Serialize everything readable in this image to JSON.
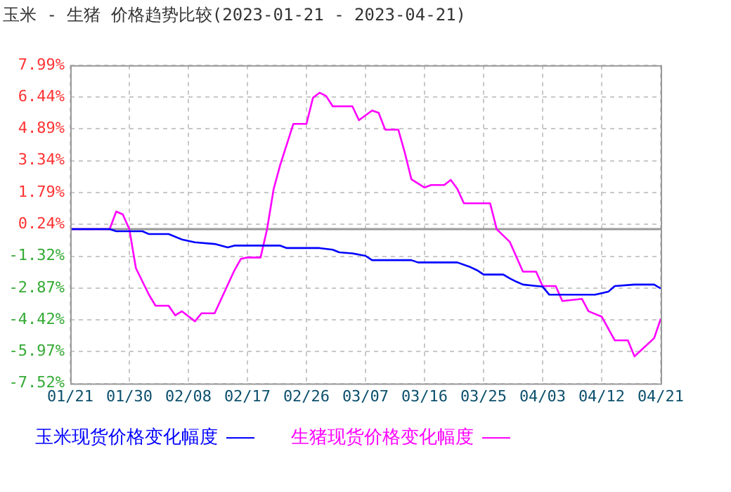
{
  "chart_data": {
    "type": "line",
    "title": "玉米 - 生猪 价格趋势比较(2023-01-21 - 2023-04-21)",
    "xlim": [
      "2023-01-21",
      "2023-04-21"
    ],
    "xticks": [
      {
        "value": "2023-01-21",
        "label": "01/21"
      },
      {
        "value": "2023-01-30",
        "label": "01/30"
      },
      {
        "value": "2023-02-08",
        "label": "02/08"
      },
      {
        "value": "2023-02-17",
        "label": "02/17"
      },
      {
        "value": "2023-02-26",
        "label": "02/26"
      },
      {
        "value": "2023-03-07",
        "label": "03/07"
      },
      {
        "value": "2023-03-16",
        "label": "03/16"
      },
      {
        "value": "2023-03-25",
        "label": "03/25"
      },
      {
        "value": "2023-04-03",
        "label": "04/03"
      },
      {
        "value": "2023-04-12",
        "label": "04/12"
      },
      {
        "value": "2023-04-21",
        "label": "04/21"
      }
    ],
    "ylim": [
      -7.52,
      7.99
    ],
    "yticks": [
      {
        "value": -7.52,
        "label": "-7.52%"
      },
      {
        "value": -5.97,
        "label": "-5.97%"
      },
      {
        "value": -4.42,
        "label": "-4.42%"
      },
      {
        "value": -2.87,
        "label": "-2.87%"
      },
      {
        "value": -1.32,
        "label": "-1.32%"
      },
      {
        "value": 0.24,
        "label": "0.24%"
      },
      {
        "value": 1.79,
        "label": "1.79%"
      },
      {
        "value": 3.34,
        "label": "3.34%"
      },
      {
        "value": 4.89,
        "label": "4.89%"
      },
      {
        "value": 6.44,
        "label": "6.44%"
      },
      {
        "value": 7.99,
        "label": "7.99%"
      }
    ],
    "grid": true,
    "legend": "bottom",
    "marker": "none",
    "line_style": "solid",
    "ref_lines": [
      {
        "axis": "y",
        "value": 0,
        "color": "#999999"
      }
    ],
    "series": [
      {
        "name": "玉米现货价格变化幅度",
        "color": "#0000ff",
        "x": [
          "2023-01-21",
          "2023-01-27",
          "2023-01-28",
          "2023-02-01",
          "2023-02-02",
          "2023-02-05",
          "2023-02-07",
          "2023-02-09",
          "2023-02-12",
          "2023-02-14",
          "2023-02-15",
          "2023-02-22",
          "2023-02-23",
          "2023-02-28",
          "2023-03-02",
          "2023-03-03",
          "2023-03-05",
          "2023-03-07",
          "2023-03-08",
          "2023-03-14",
          "2023-03-15",
          "2023-03-21",
          "2023-03-23",
          "2023-03-24",
          "2023-03-25",
          "2023-03-28",
          "2023-03-29",
          "2023-03-30",
          "2023-03-31",
          "2023-04-03",
          "2023-04-04",
          "2023-04-11",
          "2023-04-13",
          "2023-04-14",
          "2023-04-17",
          "2023-04-20",
          "2023-04-21"
        ],
        "values": [
          0,
          0,
          -0.1,
          -0.1,
          -0.24,
          -0.24,
          -0.5,
          -0.64,
          -0.72,
          -0.89,
          -0.8,
          -0.8,
          -0.92,
          -0.92,
          -1.0,
          -1.13,
          -1.18,
          -1.3,
          -1.51,
          -1.51,
          -1.62,
          -1.62,
          -1.85,
          -2.0,
          -2.21,
          -2.21,
          -2.4,
          -2.56,
          -2.7,
          -2.8,
          -3.19,
          -3.19,
          -3.05,
          -2.77,
          -2.7,
          -2.7,
          -2.89
        ]
      },
      {
        "name": "生猪现货价格变化幅度",
        "color": "#ff00ff",
        "x": [
          "2023-01-21",
          "2023-01-27",
          "2023-01-28",
          "2023-01-29",
          "2023-01-30",
          "2023-01-31",
          "2023-02-02",
          "2023-02-03",
          "2023-02-05",
          "2023-02-06",
          "2023-02-07",
          "2023-02-09",
          "2023-02-10",
          "2023-02-12",
          "2023-02-15",
          "2023-02-16",
          "2023-02-17",
          "2023-02-19",
          "2023-02-20",
          "2023-02-21",
          "2023-02-22",
          "2023-02-24",
          "2023-02-26",
          "2023-02-27",
          "2023-02-28",
          "2023-03-01",
          "2023-03-02",
          "2023-03-05",
          "2023-03-06",
          "2023-03-08",
          "2023-03-09",
          "2023-03-10",
          "2023-03-12",
          "2023-03-13",
          "2023-03-14",
          "2023-03-16",
          "2023-03-17",
          "2023-03-19",
          "2023-03-20",
          "2023-03-21",
          "2023-03-22",
          "2023-03-26",
          "2023-03-27",
          "2023-03-29",
          "2023-03-31",
          "2023-04-02",
          "2023-04-03",
          "2023-04-05",
          "2023-04-06",
          "2023-04-09",
          "2023-04-10",
          "2023-04-12",
          "2023-04-14",
          "2023-04-16",
          "2023-04-17",
          "2023-04-20",
          "2023-04-21"
        ],
        "values": [
          0,
          0,
          0.86,
          0.72,
          0,
          -1.9,
          -3.2,
          -3.73,
          -3.73,
          -4.2,
          -4.0,
          -4.49,
          -4.1,
          -4.1,
          -2.02,
          -1.45,
          -1.38,
          -1.38,
          0,
          1.96,
          3.13,
          5.13,
          5.13,
          6.41,
          6.65,
          6.49,
          5.99,
          5.99,
          5.31,
          5.78,
          5.67,
          4.85,
          4.85,
          3.72,
          2.43,
          2.03,
          2.15,
          2.15,
          2.4,
          1.96,
          1.26,
          1.26,
          0,
          -0.62,
          -2.07,
          -2.07,
          -2.77,
          -2.77,
          -3.5,
          -3.4,
          -4.0,
          -4.26,
          -5.42,
          -5.42,
          -6.2,
          -5.31,
          -4.37
        ]
      }
    ]
  }
}
